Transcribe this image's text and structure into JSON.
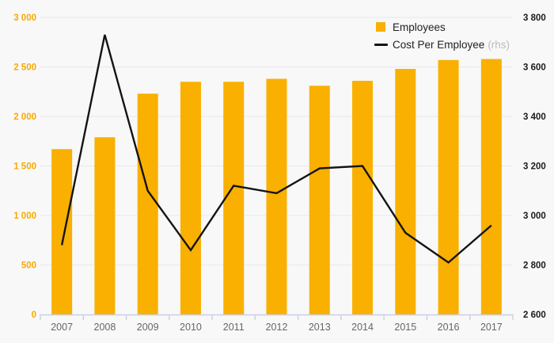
{
  "colors": {
    "bar": "#F9B000",
    "line": "#141414",
    "left_axis_labels": "#F9A900",
    "right_axis_labels": "#1a1a1a",
    "year_labels": "#666666",
    "axis_line": "#c9cfe6",
    "gridline": "#e9e9e9",
    "background": "#f8f8f8",
    "legend_text": "#222222",
    "legend_suffix": "#bcbcbc"
  },
  "legend": {
    "position": "top-right",
    "items": [
      {
        "label": "Employees",
        "marker": "square"
      },
      {
        "label": "Cost Per Employee",
        "suffix": "(rhs)",
        "marker": "line"
      }
    ]
  },
  "chart_data": {
    "type": "bar",
    "subtype": "bar-line-combo-dual-axis",
    "title": "",
    "grid": true,
    "legend_position": "top-right",
    "categories": [
      "2007",
      "2008",
      "2009",
      "2010",
      "2011",
      "2012",
      "2013",
      "2014",
      "2015",
      "2016",
      "2017"
    ],
    "series": [
      {
        "name": "Employees",
        "type": "bar",
        "axis": "left",
        "values": [
          1670,
          1790,
          2230,
          2350,
          2350,
          2380,
          2310,
          2360,
          2480,
          2570,
          2580
        ]
      },
      {
        "name": "Cost Per Employee (rhs)",
        "type": "line",
        "axis": "right",
        "values": [
          2880,
          3730,
          3100,
          2860,
          3120,
          3090,
          3190,
          3200,
          2930,
          2810,
          2960
        ]
      }
    ],
    "left_axis": {
      "min": 0,
      "max": 3000,
      "tick_labels": [
        "0",
        "500",
        "1 000",
        "1 500",
        "2 000",
        "2 500",
        "3 000"
      ]
    },
    "right_axis": {
      "min": 2600,
      "max": 3800,
      "tick_labels": [
        "2 600",
        "2 800",
        "3 000",
        "3 200",
        "3 400",
        "3 600",
        "3 800"
      ]
    },
    "x_axis": {
      "tick_labels": [
        "2007",
        "2008",
        "2009",
        "2010",
        "2011",
        "2012",
        "2013",
        "2014",
        "2015",
        "2016",
        "2017"
      ]
    }
  }
}
